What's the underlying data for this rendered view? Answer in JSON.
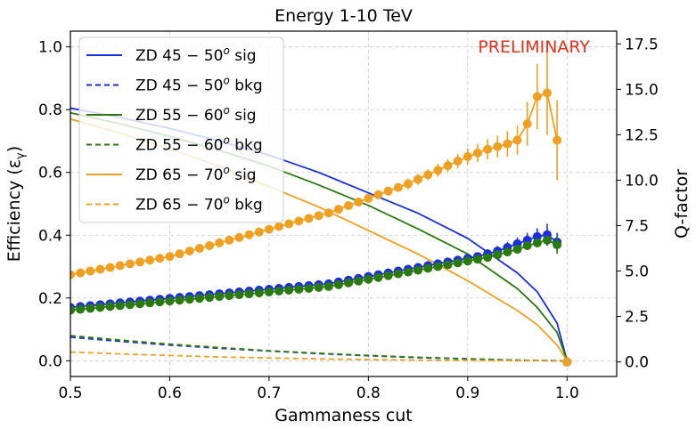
{
  "chart_data": {
    "type": "line",
    "title": "Energy 1-10 TeV",
    "watermark": "PRELIMINARY",
    "xlabel": "Gammaness cut",
    "ylabel_left": "Efficiency (ε",
    "ylabel_left_sub": "γ",
    "ylabel_left_close": ")",
    "ylabel_right": "Q-factor",
    "xlim": [
      0.5,
      1.05
    ],
    "ylim_left": [
      -0.05,
      1.05
    ],
    "ylim_right": [
      -0.8,
      18.2
    ],
    "xticks": [
      0.5,
      0.6,
      0.7,
      0.8,
      0.9,
      1.0
    ],
    "xtick_labels": [
      "0.5",
      "0.6",
      "0.7",
      "0.8",
      "0.9",
      "1.0"
    ],
    "yticks_left": [
      0.0,
      0.2,
      0.4,
      0.6,
      0.8,
      1.0
    ],
    "ytick_labels_left": [
      "0.0",
      "0.2",
      "0.4",
      "0.6",
      "0.8",
      "1.0"
    ],
    "yticks_right": [
      0.0,
      2.5,
      5.0,
      7.5,
      10.0,
      12.5,
      15.0,
      17.5
    ],
    "ytick_labels_right": [
      "0.0",
      "2.5",
      "5.0",
      "7.5",
      "10.0",
      "12.5",
      "15.0",
      "17.5"
    ],
    "grid": true,
    "legend_position": "top-left",
    "legend": [
      {
        "prefix": "ZD 45 − 50",
        "suffix": " sig",
        "color": "#1a2ee0",
        "style": "solid"
      },
      {
        "prefix": "ZD 45 − 50",
        "suffix": " bkg",
        "color": "#1a2ee0",
        "style": "dashed"
      },
      {
        "prefix": "ZD 55 − 60",
        "suffix": " sig",
        "color": "#2a7a10",
        "style": "solid"
      },
      {
        "prefix": "ZD 55 − 60",
        "suffix": " bkg",
        "color": "#2a7a10",
        "style": "dashed"
      },
      {
        "prefix": "ZD 65 − 70",
        "suffix": " sig",
        "color": "#f0a020",
        "style": "solid"
      },
      {
        "prefix": "ZD 65 − 70",
        "suffix": " bkg",
        "color": "#f0a020",
        "style": "dashed"
      }
    ],
    "legend_superscript": "o",
    "efficiency_series": [
      {
        "name": "ZD 45-50 sig",
        "color": "#1a2ee0",
        "dashed": false,
        "x": [
          0.5,
          0.55,
          0.6,
          0.65,
          0.7,
          0.75,
          0.8,
          0.85,
          0.9,
          0.95,
          0.97,
          0.99,
          1.0
        ],
        "y": [
          0.805,
          0.775,
          0.74,
          0.7,
          0.655,
          0.6,
          0.535,
          0.47,
          0.39,
          0.28,
          0.22,
          0.12,
          0.0
        ]
      },
      {
        "name": "ZD 45-50 bkg",
        "color": "#1a2ee0",
        "dashed": true,
        "x": [
          0.5,
          0.55,
          0.6,
          0.65,
          0.7,
          0.75,
          0.8,
          0.85,
          0.9,
          0.95,
          1.0
        ],
        "y": [
          0.075,
          0.062,
          0.05,
          0.04,
          0.031,
          0.023,
          0.016,
          0.01,
          0.006,
          0.002,
          0.0
        ]
      },
      {
        "name": "ZD 55-60 sig",
        "color": "#2a7a10",
        "dashed": false,
        "x": [
          0.5,
          0.55,
          0.6,
          0.65,
          0.7,
          0.75,
          0.8,
          0.85,
          0.9,
          0.95,
          0.97,
          0.99,
          1.0
        ],
        "y": [
          0.79,
          0.755,
          0.715,
          0.67,
          0.62,
          0.56,
          0.495,
          0.42,
          0.34,
          0.23,
          0.17,
          0.09,
          0.0
        ]
      },
      {
        "name": "ZD 55-60 bkg",
        "color": "#2a7a10",
        "dashed": true,
        "x": [
          0.5,
          0.55,
          0.6,
          0.65,
          0.7,
          0.75,
          0.8,
          0.85,
          0.9,
          0.95,
          1.0
        ],
        "y": [
          0.08,
          0.066,
          0.053,
          0.042,
          0.032,
          0.024,
          0.017,
          0.011,
          0.006,
          0.002,
          0.0
        ]
      },
      {
        "name": "ZD 65-70 sig",
        "color": "#f0a020",
        "dashed": false,
        "x": [
          0.5,
          0.55,
          0.6,
          0.65,
          0.7,
          0.75,
          0.8,
          0.85,
          0.9,
          0.95,
          0.97,
          0.99,
          1.0
        ],
        "y": [
          0.77,
          0.725,
          0.675,
          0.62,
          0.555,
          0.49,
          0.415,
          0.34,
          0.255,
          0.16,
          0.115,
          0.05,
          0.0
        ]
      },
      {
        "name": "ZD 65-70 bkg",
        "color": "#f0a020",
        "dashed": true,
        "x": [
          0.5,
          0.55,
          0.6,
          0.65,
          0.7,
          0.75,
          0.8,
          0.85,
          0.9,
          0.95,
          1.0
        ],
        "y": [
          0.028,
          0.022,
          0.017,
          0.012,
          0.009,
          0.006,
          0.004,
          0.002,
          0.001,
          0.0005,
          0.0
        ]
      }
    ],
    "qfactor_series": [
      {
        "name": "ZD 45-50 Q",
        "color": "#1a2ee0",
        "x": [
          0.5,
          0.51,
          0.52,
          0.53,
          0.54,
          0.55,
          0.56,
          0.57,
          0.58,
          0.59,
          0.6,
          0.61,
          0.62,
          0.63,
          0.64,
          0.65,
          0.66,
          0.67,
          0.68,
          0.69,
          0.7,
          0.71,
          0.72,
          0.73,
          0.74,
          0.75,
          0.76,
          0.77,
          0.78,
          0.79,
          0.8,
          0.81,
          0.82,
          0.83,
          0.84,
          0.85,
          0.86,
          0.87,
          0.88,
          0.89,
          0.9,
          0.91,
          0.92,
          0.93,
          0.94,
          0.95,
          0.96,
          0.97,
          0.98,
          0.99
        ],
        "y": [
          3.0,
          3.05,
          3.1,
          3.15,
          3.2,
          3.25,
          3.3,
          3.35,
          3.4,
          3.45,
          3.5,
          3.55,
          3.6,
          3.65,
          3.7,
          3.75,
          3.8,
          3.85,
          3.9,
          3.95,
          4.0,
          4.05,
          4.1,
          4.15,
          4.2,
          4.25,
          4.3,
          4.4,
          4.5,
          4.6,
          4.7,
          4.8,
          4.9,
          5.0,
          5.1,
          5.2,
          5.3,
          5.4,
          5.5,
          5.6,
          5.7,
          5.8,
          5.95,
          6.1,
          6.3,
          6.5,
          6.7,
          6.9,
          7.0,
          6.6
        ],
        "err": [
          0.1,
          0.1,
          0.1,
          0.1,
          0.1,
          0.1,
          0.1,
          0.1,
          0.1,
          0.1,
          0.1,
          0.1,
          0.1,
          0.1,
          0.1,
          0.1,
          0.1,
          0.1,
          0.1,
          0.1,
          0.1,
          0.1,
          0.1,
          0.1,
          0.1,
          0.1,
          0.1,
          0.12,
          0.12,
          0.12,
          0.12,
          0.12,
          0.14,
          0.14,
          0.14,
          0.15,
          0.15,
          0.16,
          0.16,
          0.18,
          0.2,
          0.22,
          0.25,
          0.28,
          0.3,
          0.35,
          0.4,
          0.45,
          0.6,
          0.5
        ]
      },
      {
        "name": "ZD 55-60 Q",
        "color": "#2a7a10",
        "x": [
          0.5,
          0.51,
          0.52,
          0.53,
          0.54,
          0.55,
          0.56,
          0.57,
          0.58,
          0.59,
          0.6,
          0.61,
          0.62,
          0.63,
          0.64,
          0.65,
          0.66,
          0.67,
          0.68,
          0.69,
          0.7,
          0.71,
          0.72,
          0.73,
          0.74,
          0.75,
          0.76,
          0.77,
          0.78,
          0.79,
          0.8,
          0.81,
          0.82,
          0.83,
          0.84,
          0.85,
          0.86,
          0.87,
          0.88,
          0.89,
          0.9,
          0.91,
          0.92,
          0.93,
          0.94,
          0.95,
          0.96,
          0.97,
          0.98,
          0.99
        ],
        "y": [
          2.85,
          2.9,
          2.95,
          3.0,
          3.05,
          3.1,
          3.15,
          3.2,
          3.25,
          3.3,
          3.35,
          3.4,
          3.45,
          3.5,
          3.55,
          3.6,
          3.65,
          3.7,
          3.75,
          3.8,
          3.85,
          3.9,
          3.95,
          4.0,
          4.05,
          4.1,
          4.15,
          4.25,
          4.35,
          4.45,
          4.55,
          4.65,
          4.75,
          4.85,
          4.95,
          5.05,
          5.15,
          5.25,
          5.35,
          5.45,
          5.55,
          5.65,
          5.75,
          5.9,
          6.05,
          6.2,
          6.4,
          6.55,
          6.7,
          6.45
        ],
        "err": [
          0.1,
          0.1,
          0.1,
          0.1,
          0.1,
          0.1,
          0.1,
          0.1,
          0.1,
          0.1,
          0.1,
          0.1,
          0.1,
          0.1,
          0.1,
          0.1,
          0.1,
          0.1,
          0.1,
          0.1,
          0.1,
          0.1,
          0.1,
          0.1,
          0.1,
          0.1,
          0.1,
          0.1,
          0.1,
          0.1,
          0.1,
          0.1,
          0.1,
          0.1,
          0.1,
          0.1,
          0.1,
          0.1,
          0.1,
          0.1,
          0.1,
          0.1,
          0.1,
          0.1,
          0.1,
          0.1,
          0.1,
          0.1,
          0.2,
          0.5
        ]
      },
      {
        "name": "ZD 65-70 Q",
        "color": "#f0a020",
        "x": [
          0.5,
          0.51,
          0.52,
          0.53,
          0.54,
          0.55,
          0.56,
          0.57,
          0.58,
          0.59,
          0.6,
          0.61,
          0.62,
          0.63,
          0.64,
          0.65,
          0.66,
          0.67,
          0.68,
          0.69,
          0.7,
          0.71,
          0.72,
          0.73,
          0.74,
          0.75,
          0.76,
          0.77,
          0.78,
          0.79,
          0.8,
          0.81,
          0.82,
          0.83,
          0.84,
          0.85,
          0.86,
          0.87,
          0.88,
          0.89,
          0.9,
          0.91,
          0.92,
          0.93,
          0.94,
          0.95,
          0.96,
          0.97,
          0.98,
          0.99
        ],
        "y": [
          4.8,
          4.9,
          5.0,
          5.1,
          5.2,
          5.3,
          5.4,
          5.5,
          5.6,
          5.7,
          5.8,
          5.95,
          6.1,
          6.25,
          6.4,
          6.55,
          6.7,
          6.85,
          7.0,
          7.15,
          7.3,
          7.45,
          7.6,
          7.75,
          7.9,
          8.05,
          8.2,
          8.4,
          8.6,
          8.8,
          9.0,
          9.2,
          9.4,
          9.6,
          9.8,
          10.05,
          10.3,
          10.55,
          10.8,
          11.05,
          11.3,
          11.5,
          11.7,
          11.85,
          12.0,
          12.2,
          13.1,
          14.6,
          14.8,
          12.2
        ],
        "err": [
          0.15,
          0.15,
          0.15,
          0.15,
          0.15,
          0.15,
          0.15,
          0.15,
          0.15,
          0.15,
          0.15,
          0.15,
          0.15,
          0.15,
          0.15,
          0.15,
          0.15,
          0.15,
          0.15,
          0.15,
          0.15,
          0.15,
          0.15,
          0.15,
          0.15,
          0.2,
          0.2,
          0.2,
          0.2,
          0.2,
          0.2,
          0.25,
          0.25,
          0.25,
          0.3,
          0.3,
          0.3,
          0.35,
          0.35,
          0.4,
          0.45,
          0.5,
          0.55,
          0.6,
          0.7,
          0.8,
          1.2,
          1.8,
          2.3,
          2.2
        ]
      }
    ],
    "endpoint": {
      "x": 1.0,
      "y": 0.0
    }
  }
}
